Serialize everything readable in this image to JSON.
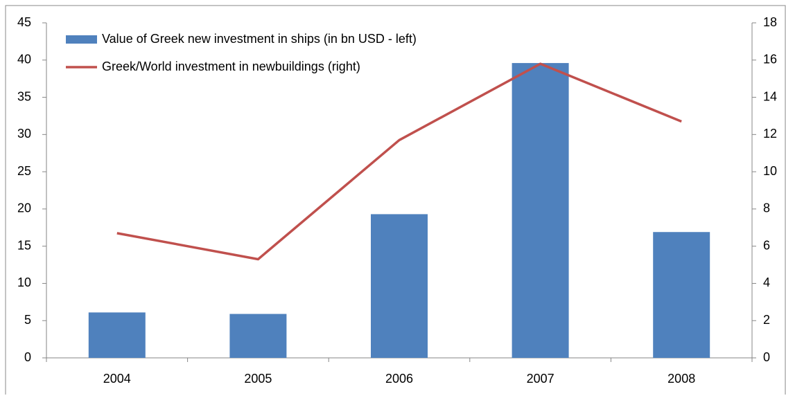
{
  "chart_data": {
    "type": "bar",
    "categories": [
      "2004",
      "2005",
      "2006",
      "2007",
      "2008"
    ],
    "series": [
      {
        "name": "Value of Greek new investment in ships (in bn USD - left)",
        "type": "bar",
        "color": "#4f81bd",
        "values": [
          6.1,
          5.9,
          19.3,
          39.6,
          16.9
        ]
      },
      {
        "name": "Greek/World investment in newbuildings (right)",
        "type": "line",
        "axis": "y2",
        "color": "#c0504d",
        "values": [
          6.7,
          5.3,
          11.7,
          15.8,
          12.7
        ]
      }
    ],
    "ylim": [
      0,
      45
    ],
    "yticks": [
      0,
      5,
      10,
      15,
      20,
      25,
      30,
      35,
      40,
      45
    ],
    "y2lim": [
      0,
      18
    ],
    "y2ticks": [
      0,
      2,
      4,
      6,
      8,
      10,
      12,
      14,
      16,
      18
    ],
    "grid": false,
    "legend": "top-left"
  }
}
